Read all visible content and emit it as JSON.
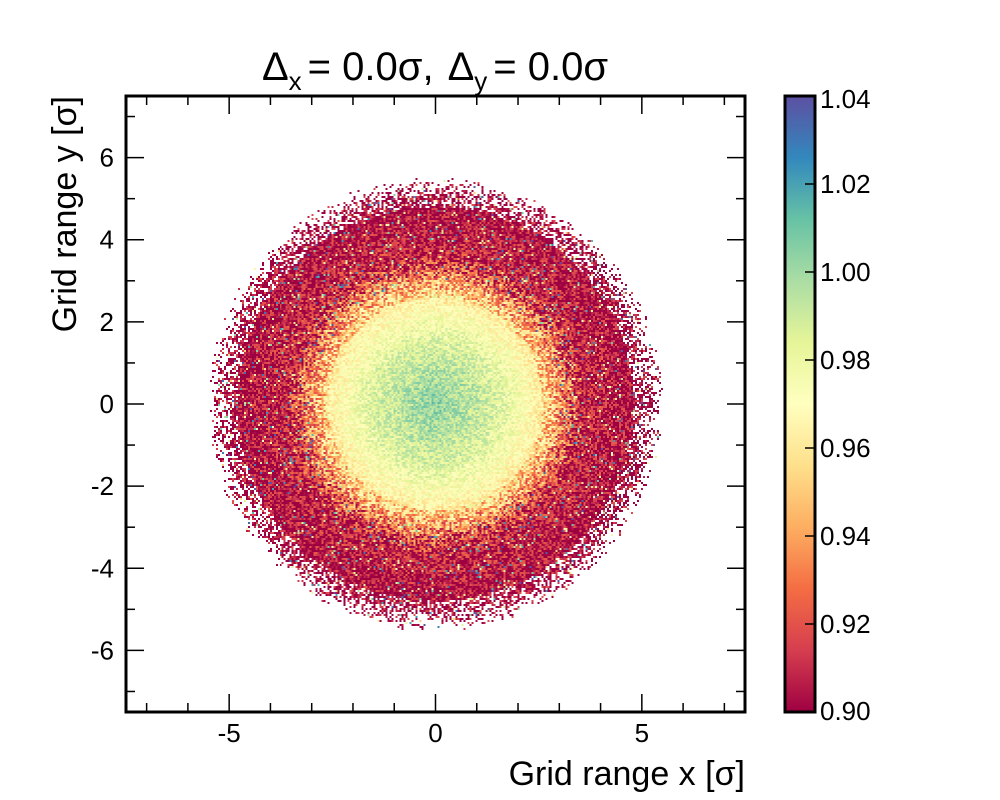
{
  "chart_data": {
    "type": "heatmap",
    "title": {
      "dx_symbol": "Δ",
      "dx_subscript": "x",
      "dx_value": "= 0.0σ,",
      "dy_symbol": "Δ",
      "dy_subscript": "y",
      "dy_value": "= 0.0σ"
    },
    "xlabel": "Grid range x [σ]",
    "ylabel": "Grid range y [σ]",
    "xlim": [
      -7.5,
      7.5
    ],
    "ylim": [
      -7.5,
      7.5
    ],
    "x_ticks": [
      {
        "value": -5,
        "label": "-5"
      },
      {
        "value": 0,
        "label": "0"
      },
      {
        "value": 5,
        "label": "5"
      }
    ],
    "y_ticks": [
      {
        "value": 6,
        "label": "6"
      },
      {
        "value": 4,
        "label": "4"
      },
      {
        "value": 2,
        "label": "2"
      },
      {
        "value": 0,
        "label": "0"
      },
      {
        "value": -2,
        "label": "-2"
      },
      {
        "value": -4,
        "label": "-4"
      },
      {
        "value": -6,
        "label": "-6"
      }
    ],
    "zlim": [
      0.9,
      1.04
    ],
    "z_ticks": [
      {
        "value": 1.04,
        "label": "1.04"
      },
      {
        "value": 1.02,
        "label": "1.02"
      },
      {
        "value": 1.0,
        "label": "1.00"
      },
      {
        "value": 0.98,
        "label": "0.98"
      },
      {
        "value": 0.96,
        "label": "0.96"
      },
      {
        "value": 0.94,
        "label": "0.94"
      },
      {
        "value": 0.92,
        "label": "0.92"
      },
      {
        "value": 0.9,
        "label": "0.90"
      }
    ],
    "colormap": {
      "name": "Spectral",
      "stops": [
        "#9e0142",
        "#d53e4f",
        "#f46d43",
        "#fdae61",
        "#fee08b",
        "#ffffbf",
        "#e6f598",
        "#abdda4",
        "#66c2a5",
        "#3288bd",
        "#5e4fa2"
      ]
    },
    "distribution": {
      "center": [
        0.0,
        0.0
      ],
      "populated_radius": 5.3,
      "value_profile": [
        {
          "r": 0.0,
          "value": 1.005
        },
        {
          "r": 1.5,
          "value": 0.985
        },
        {
          "r": 2.5,
          "value": 0.965
        },
        {
          "r": 3.5,
          "value": 0.91
        },
        {
          "r": 5.0,
          "value": 0.9
        }
      ]
    },
    "grid": false
  }
}
